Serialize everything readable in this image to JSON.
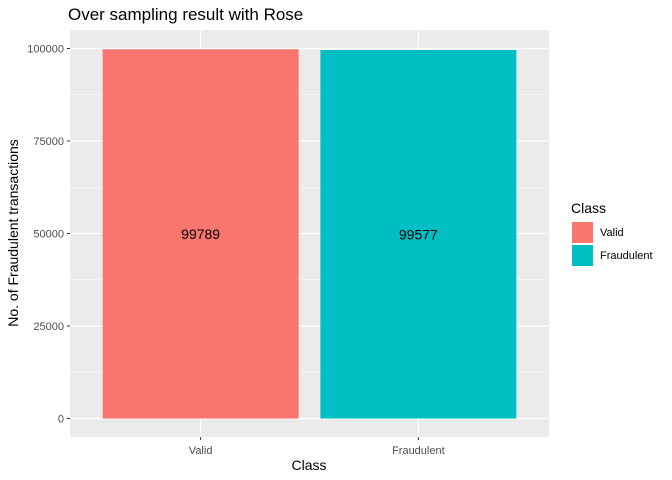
{
  "chart_data": {
    "type": "bar",
    "title": "Over sampling result with Rose",
    "xlabel": "Class",
    "ylabel": "No. of Fraudulent transactions",
    "categories": [
      "Valid",
      "Fraudulent"
    ],
    "values": [
      99789,
      99577
    ],
    "data_labels": [
      "99789",
      "99577"
    ],
    "colors": [
      "#F8766D",
      "#00BFC4"
    ],
    "ylim": [
      0,
      100000
    ],
    "yticks": [
      0,
      25000,
      50000,
      75000,
      100000
    ],
    "ytick_labels": [
      "0",
      "25000",
      "50000",
      "75000",
      "100000"
    ],
    "grid": true,
    "legend": {
      "title": "Class",
      "placement": "right",
      "entries": [
        {
          "label": "Valid",
          "color": "#F8766D"
        },
        {
          "label": "Fraudulent",
          "color": "#00BFC4"
        }
      ]
    }
  }
}
